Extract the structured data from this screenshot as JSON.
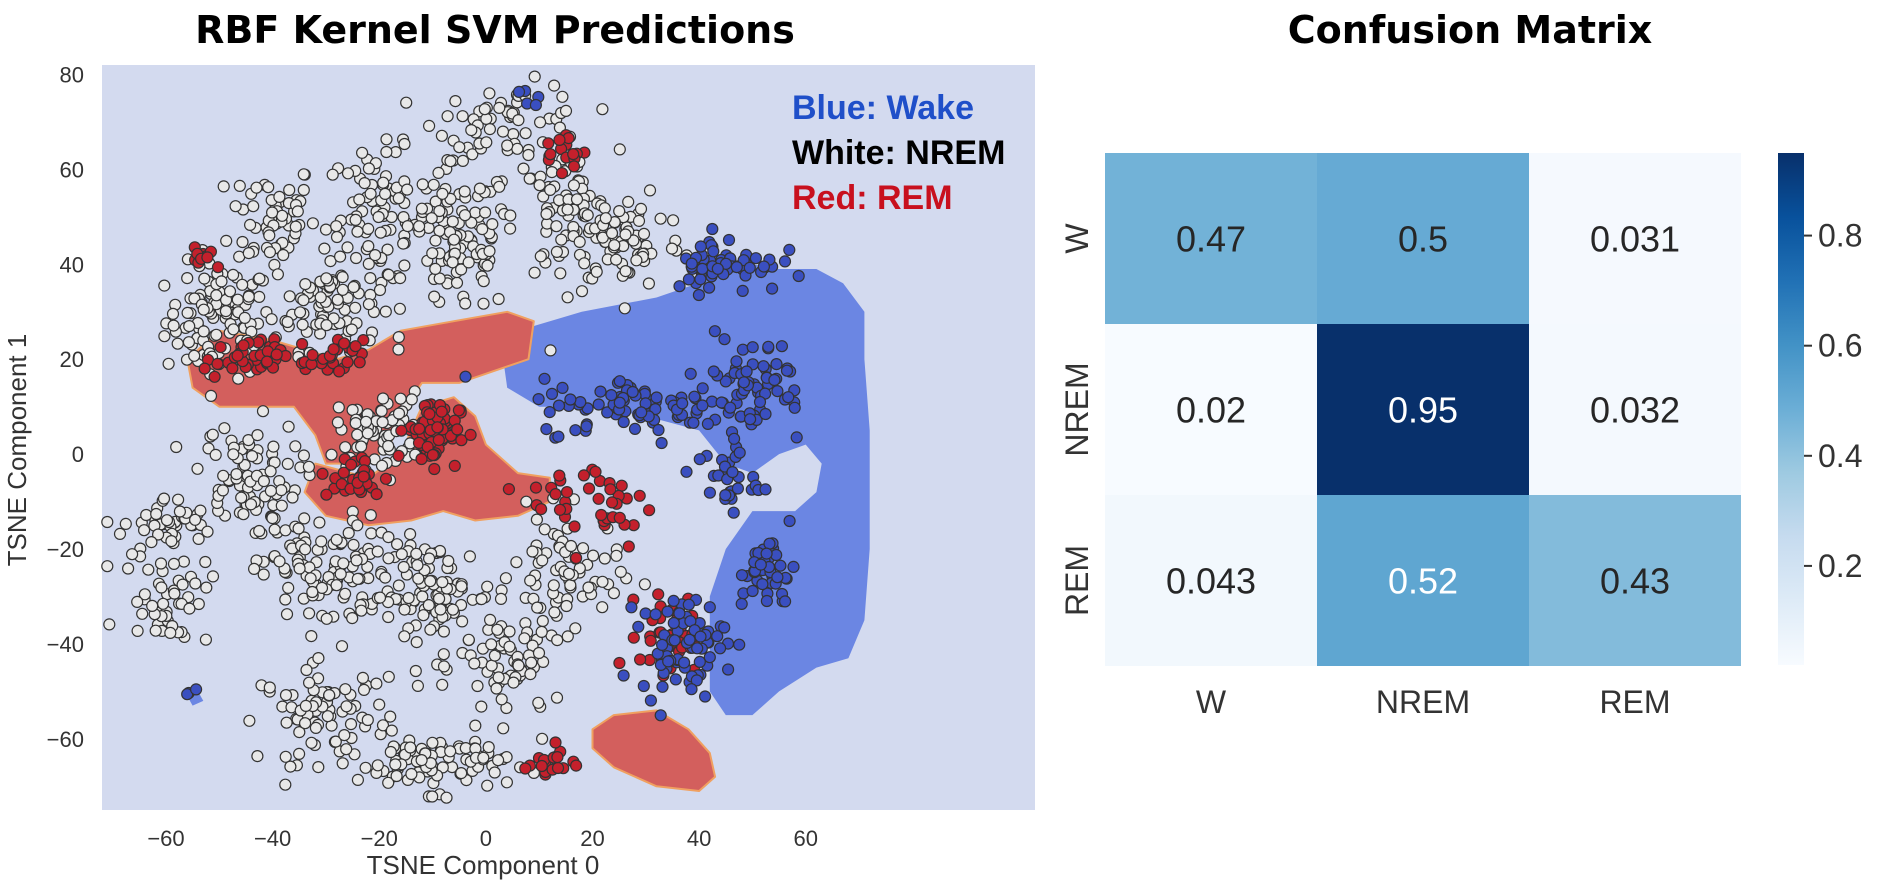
{
  "chart_data": [
    {
      "type": "scatter",
      "title": "RBF Kernel SVM Predictions",
      "xlabel": "TSNE Component 0",
      "ylabel": "TSNE Component 1",
      "xlim": [
        -72,
        103
      ],
      "ylim": [
        -75,
        82
      ],
      "xticks": [
        "−60",
        "−40",
        "−20",
        "0",
        "20",
        "40",
        "60"
      ],
      "xtick_values": [
        -60,
        -40,
        -20,
        0,
        20,
        40,
        60
      ],
      "yticks": [
        "80",
        "60",
        "40",
        "20",
        "0",
        "−20",
        "−40",
        "−60"
      ],
      "ytick_values": [
        80,
        60,
        40,
        20,
        0,
        -20,
        -40,
        -60
      ],
      "grid": false,
      "background": "#d3daef",
      "legend_text": [
        {
          "text": "Blue: Wake",
          "color": "#1f4fc9"
        },
        {
          "text": "White: NREM",
          "color": "#000000"
        },
        {
          "text": "Red: REM",
          "color": "#c8101e"
        }
      ],
      "series": [
        {
          "name": "Wake",
          "color": "#3a4fc0"
        },
        {
          "name": "NREM",
          "color": "#e8e8e8"
        },
        {
          "name": "REM",
          "color": "#c4202c"
        }
      ],
      "decision_regions": [
        {
          "class": "Wake",
          "color": "#6b86e3",
          "polygon": [
            [
              6,
              26
            ],
            [
              18,
              30
            ],
            [
              32,
              33
            ],
            [
              45,
              38
            ],
            [
              50,
              40
            ],
            [
              55,
              39
            ],
            [
              62,
              39
            ],
            [
              67,
              36
            ],
            [
              71,
              30
            ],
            [
              71,
              20
            ],
            [
              72,
              5
            ],
            [
              72,
              -20
            ],
            [
              71,
              -35
            ],
            [
              68,
              -43
            ],
            [
              62,
              -45
            ],
            [
              55,
              -50
            ],
            [
              50,
              -55
            ],
            [
              45,
              -55
            ],
            [
              42,
              -50
            ],
            [
              42,
              -30
            ],
            [
              45,
              -20
            ],
            [
              50,
              -12
            ],
            [
              58,
              -12
            ],
            [
              62,
              -8
            ],
            [
              63,
              -2
            ],
            [
              60,
              2
            ],
            [
              55,
              0
            ],
            [
              50,
              -4
            ],
            [
              45,
              -2
            ],
            [
              40,
              5
            ],
            [
              30,
              8
            ],
            [
              20,
              10
            ],
            [
              10,
              10
            ],
            [
              4,
              14
            ],
            [
              3,
              22
            ]
          ]
        },
        {
          "class": "Wake",
          "color": "#6b86e3",
          "polygon": [
            [
              -56,
              -51
            ],
            [
              -54,
              -50
            ],
            [
              -53,
              -52
            ],
            [
              -55,
              -53
            ]
          ]
        },
        {
          "class": "REM",
          "color": "#d35f5d",
          "polygon": [
            [
              -56,
              20
            ],
            [
              -50,
              26
            ],
            [
              -40,
              24
            ],
            [
              -28,
              20
            ],
            [
              -22,
              22
            ],
            [
              -16,
              26
            ],
            [
              -6,
              28
            ],
            [
              4,
              30
            ],
            [
              9,
              28
            ],
            [
              8,
              20
            ],
            [
              -5,
              15
            ],
            [
              -12,
              15
            ],
            [
              -15,
              10
            ],
            [
              -18,
              2
            ],
            [
              -22,
              -2
            ],
            [
              -30,
              -2
            ],
            [
              -32,
              4
            ],
            [
              -36,
              10
            ],
            [
              -42,
              10
            ],
            [
              -50,
              10
            ],
            [
              -55,
              14
            ]
          ]
        },
        {
          "class": "REM",
          "color": "#d35f5d",
          "polygon": [
            [
              -32,
              -2
            ],
            [
              -22,
              -5
            ],
            [
              -16,
              0
            ],
            [
              -12,
              10
            ],
            [
              -6,
              12
            ],
            [
              -2,
              8
            ],
            [
              0,
              2
            ],
            [
              6,
              -4
            ],
            [
              12,
              -5
            ],
            [
              12,
              -10
            ],
            [
              6,
              -13
            ],
            [
              -2,
              -14
            ],
            [
              -8,
              -12
            ],
            [
              -14,
              -14
            ],
            [
              -22,
              -15
            ],
            [
              -30,
              -13
            ],
            [
              -34,
              -8
            ]
          ]
        },
        {
          "class": "REM",
          "color": "#d35f5d",
          "polygon": [
            [
              20,
              -58
            ],
            [
              24,
              -55
            ],
            [
              32,
              -54
            ],
            [
              38,
              -58
            ],
            [
              42,
              -63
            ],
            [
              43,
              -68
            ],
            [
              40,
              -71
            ],
            [
              32,
              -70
            ],
            [
              24,
              -66
            ],
            [
              20,
              -62
            ]
          ]
        }
      ],
      "clusters": [
        {
          "class": "NREM",
          "cx": -50,
          "cy": 28,
          "rx": 10,
          "ry": 12,
          "n": 110
        },
        {
          "class": "NREM",
          "cx": -40,
          "cy": 50,
          "rx": 8,
          "ry": 12,
          "n": 60
        },
        {
          "class": "NREM",
          "cx": -30,
          "cy": 32,
          "rx": 10,
          "ry": 10,
          "n": 80
        },
        {
          "class": "NREM",
          "cx": -20,
          "cy": 50,
          "rx": 10,
          "ry": 14,
          "n": 90
        },
        {
          "class": "NREM",
          "cx": -5,
          "cy": 45,
          "rx": 10,
          "ry": 16,
          "n": 110
        },
        {
          "class": "NREM",
          "cx": 5,
          "cy": 70,
          "rx": 14,
          "ry": 8,
          "n": 60
        },
        {
          "class": "NREM",
          "cx": 15,
          "cy": 50,
          "rx": 10,
          "ry": 14,
          "n": 90
        },
        {
          "class": "NREM",
          "cx": 27,
          "cy": 45,
          "rx": 10,
          "ry": 10,
          "n": 60
        },
        {
          "class": "NREM",
          "cx": -60,
          "cy": -15,
          "rx": 8,
          "ry": 6,
          "n": 40
        },
        {
          "class": "NREM",
          "cx": -45,
          "cy": -5,
          "rx": 10,
          "ry": 12,
          "n": 90
        },
        {
          "class": "NREM",
          "cx": -30,
          "cy": -25,
          "rx": 12,
          "ry": 12,
          "n": 110
        },
        {
          "class": "NREM",
          "cx": -20,
          "cy": 5,
          "rx": 8,
          "ry": 8,
          "n": 70
        },
        {
          "class": "NREM",
          "cx": -10,
          "cy": -30,
          "rx": 12,
          "ry": 12,
          "n": 110
        },
        {
          "class": "NREM",
          "cx": -30,
          "cy": -55,
          "rx": 12,
          "ry": 10,
          "n": 80
        },
        {
          "class": "NREM",
          "cx": -10,
          "cy": -65,
          "rx": 14,
          "ry": 6,
          "n": 90
        },
        {
          "class": "NREM",
          "cx": 5,
          "cy": -45,
          "rx": 10,
          "ry": 12,
          "n": 70
        },
        {
          "class": "NREM",
          "cx": 15,
          "cy": -25,
          "rx": 10,
          "ry": 12,
          "n": 70
        },
        {
          "class": "NREM",
          "cx": -60,
          "cy": -30,
          "rx": 8,
          "ry": 10,
          "n": 50
        },
        {
          "class": "REM",
          "cx": -10,
          "cy": 5,
          "rx": 5,
          "ry": 7,
          "n": 70
        },
        {
          "class": "REM",
          "cx": -45,
          "cy": 20,
          "rx": 8,
          "ry": 4,
          "n": 40
        },
        {
          "class": "REM",
          "cx": -28,
          "cy": 20,
          "rx": 5,
          "ry": 4,
          "n": 25
        },
        {
          "class": "REM",
          "cx": -25,
          "cy": -5,
          "rx": 6,
          "ry": 5,
          "n": 30
        },
        {
          "class": "REM",
          "cx": 35,
          "cy": -38,
          "rx": 6,
          "ry": 8,
          "n": 40
        },
        {
          "class": "REM",
          "cx": 15,
          "cy": 64,
          "rx": 4,
          "ry": 4,
          "n": 15
        },
        {
          "class": "REM",
          "cx": 12,
          "cy": -65,
          "rx": 5,
          "ry": 4,
          "n": 18
        },
        {
          "class": "REM",
          "cx": 20,
          "cy": -10,
          "rx": 12,
          "ry": 10,
          "n": 40
        },
        {
          "class": "REM",
          "cx": -53,
          "cy": 42,
          "rx": 4,
          "ry": 3,
          "n": 10
        },
        {
          "class": "Wake",
          "cx": 30,
          "cy": 10,
          "rx": 20,
          "ry": 6,
          "n": 90
        },
        {
          "class": "Wake",
          "cx": 45,
          "cy": 40,
          "rx": 10,
          "ry": 6,
          "n": 60
        },
        {
          "class": "Wake",
          "cx": 50,
          "cy": 15,
          "rx": 10,
          "ry": 10,
          "n": 60
        },
        {
          "class": "Wake",
          "cx": 37,
          "cy": -40,
          "rx": 8,
          "ry": 10,
          "n": 70
        },
        {
          "class": "Wake",
          "cx": 53,
          "cy": -25,
          "rx": 5,
          "ry": 8,
          "n": 40
        },
        {
          "class": "Wake",
          "cx": 45,
          "cy": -5,
          "rx": 6,
          "ry": 8,
          "n": 30
        },
        {
          "class": "Wake",
          "cx": 8,
          "cy": 75,
          "rx": 2,
          "ry": 2,
          "n": 5
        },
        {
          "class": "Wake",
          "cx": -55,
          "cy": -50,
          "rx": 2,
          "ry": 1,
          "n": 3
        }
      ]
    },
    {
      "type": "heatmap",
      "title": "Confusion Matrix",
      "rows": [
        "W",
        "NREM",
        "REM"
      ],
      "columns": [
        "W",
        "NREM",
        "REM"
      ],
      "values": [
        [
          0.47,
          0.5,
          0.031
        ],
        [
          0.02,
          0.95,
          0.032
        ],
        [
          0.043,
          0.52,
          0.43
        ]
      ],
      "value_labels": [
        [
          "0.47",
          "0.5",
          "0.031"
        ],
        [
          "0.02",
          "0.95",
          "0.032"
        ],
        [
          "0.043",
          "0.52",
          "0.43"
        ]
      ],
      "colorbar_ticks": [
        "0.8",
        "0.6",
        "0.4",
        "0.2"
      ],
      "colorbar_tick_values": [
        0.8,
        0.6,
        0.4,
        0.2
      ],
      "colorbar_range": [
        0.02,
        0.95
      ],
      "colormap": "Blues"
    }
  ]
}
